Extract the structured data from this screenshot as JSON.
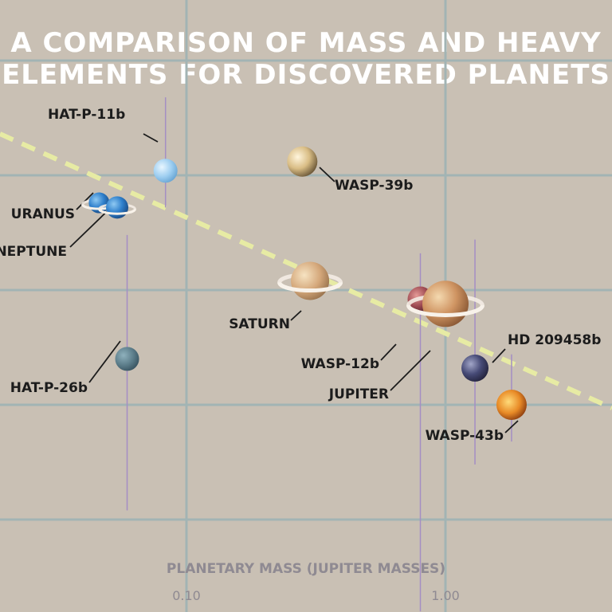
{
  "title_lines": [
    "A COMPARISON OF MASS AND HEAVY",
    "ELEMENTS FOR DISCOVERED PLANETS"
  ],
  "colors": {
    "background": "#c9c0b4",
    "grid": "#a2b4b4",
    "trend": "#e7eba4",
    "error_bar": "#a48ec4",
    "label": "#1c1c1c",
    "title": "#ffffff",
    "axis_text": "#8f8a92"
  },
  "chart_data": {
    "type": "scatter",
    "xlabel": "PLANETARY MASS (JUPITER MASSES)",
    "x_scale": "log",
    "x_ticks": [
      {
        "value": 0.1,
        "label": "0.10"
      },
      {
        "value": 1.0,
        "label": "1.00"
      }
    ],
    "xlim": [
      0.025,
      2.3
    ],
    "grid": true,
    "trend_line": {
      "style": "dashed",
      "direction": "decreasing"
    },
    "planets": [
      {
        "name": "HAT-P-11b",
        "mass": 0.083,
        "level": 0.76,
        "err_low": 0.68,
        "err_high": 0.92,
        "icon": "pale-blue-planet-icon"
      },
      {
        "name": "WASP-39b",
        "mass": 0.28,
        "level": 0.78
      },
      {
        "name": "URANUS",
        "mass": 0.046,
        "level": 0.69
      },
      {
        "name": "NEPTUNE",
        "mass": 0.054,
        "level": 0.68
      },
      {
        "name": "HAT-P-26b",
        "mass": 0.059,
        "level": 0.35,
        "err_low": 0.02,
        "err_high": 0.62
      },
      {
        "name": "SATURN",
        "mass": 0.3,
        "level": 0.52
      },
      {
        "name": "WASP-12b",
        "mass": 0.8,
        "level": 0.48,
        "err_low": -0.2,
        "err_high": 0.58
      },
      {
        "name": "JUPITER",
        "mass": 1.0,
        "level": 0.47
      },
      {
        "name": "HD 209458b",
        "mass": 1.3,
        "level": 0.33,
        "err_low": 0.12,
        "err_high": 0.61
      },
      {
        "name": "WASP-43b",
        "mass": 1.8,
        "level": 0.25,
        "err_low": 0.17,
        "err_high": 0.36
      }
    ]
  }
}
